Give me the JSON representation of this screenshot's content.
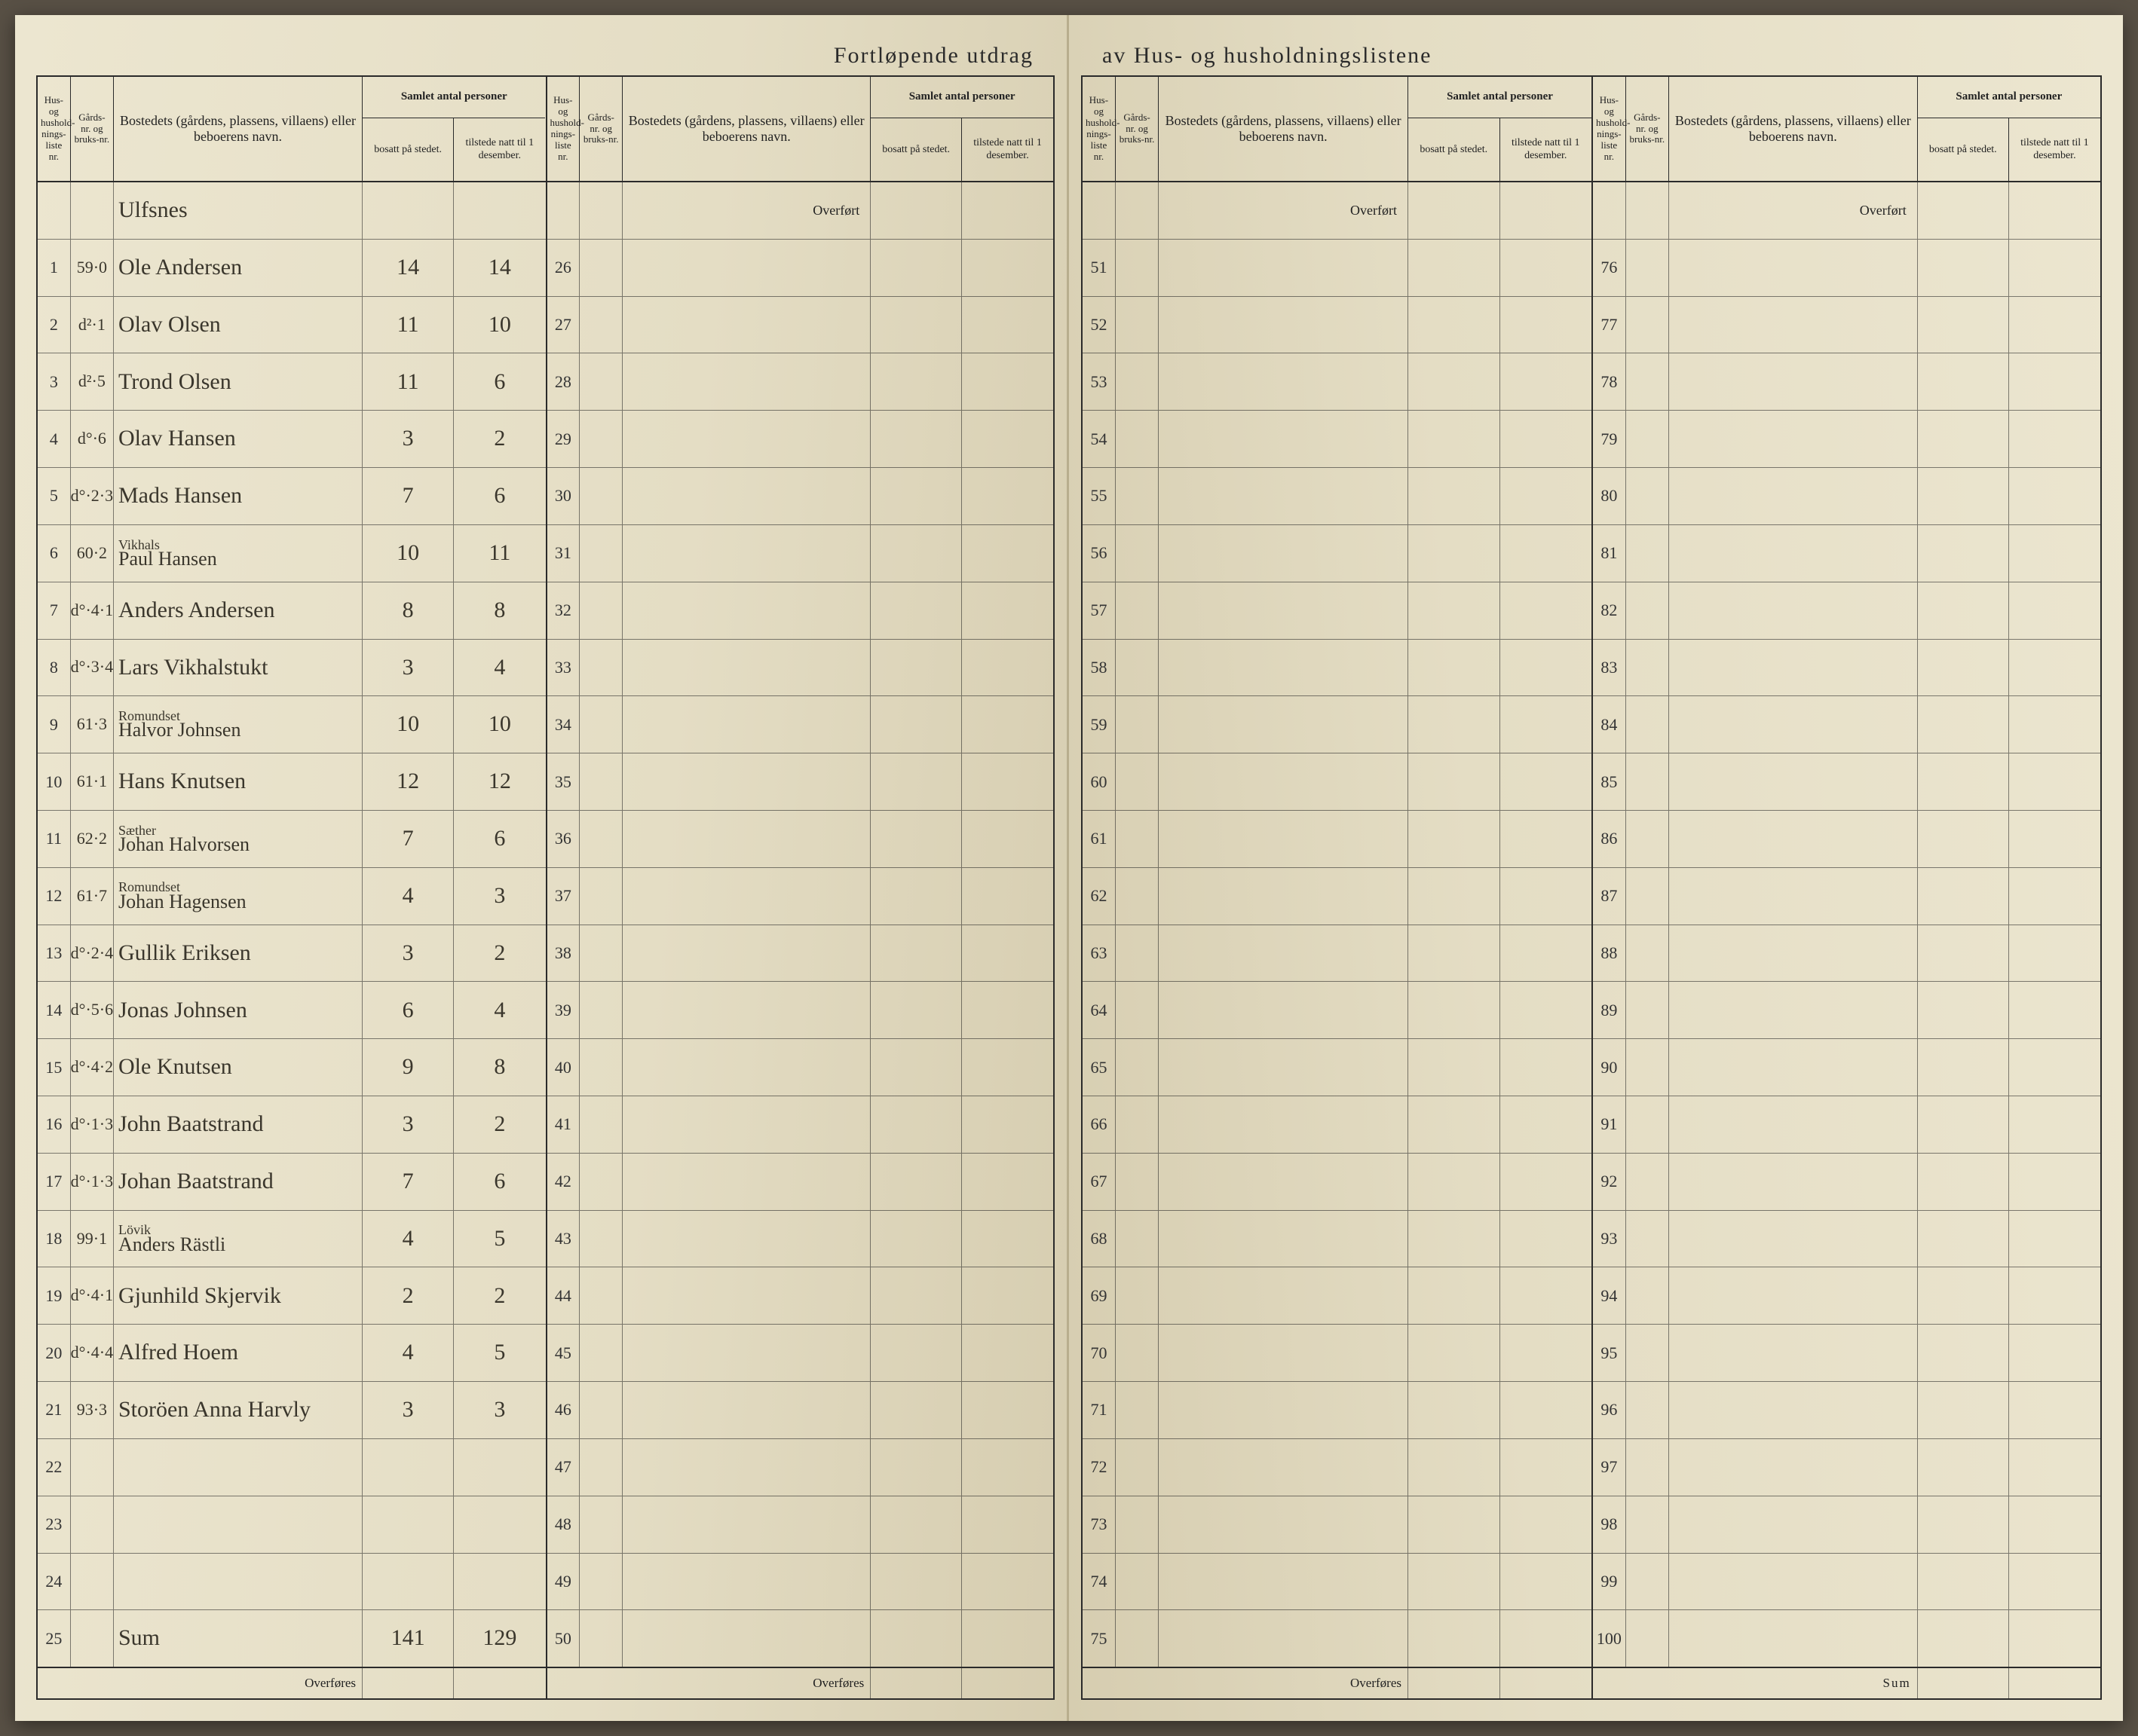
{
  "title_left": "Fortløpende utdrag",
  "title_right": "av Hus- og husholdningslistene",
  "header": {
    "hus": "Hus- og hushold-nings-liste nr.",
    "gard": "Gårds-nr. og bruks-nr.",
    "bosted": "Bostedets (gårdens, plassens, villaens) eller beboerens navn.",
    "persons_top": "Samlet antal personer",
    "bosatt": "bosatt på stedet.",
    "tilstede": "tilstede natt til 1 desember."
  },
  "overfort": "Overført",
  "overfores": "Overføres",
  "sum_label": "Sum",
  "sum_row_label": "Sum",
  "sum_bosatt": "141",
  "sum_tilstede": "129",
  "heading_place": "Ulfsnes",
  "rows": [
    {
      "n": 1,
      "gard": "59·0",
      "bosted": "Ole Andersen",
      "b": "14",
      "t": "14"
    },
    {
      "n": 2,
      "gard": "d²·1",
      "bosted": "Olav Olsen",
      "b": "11",
      "t": "10"
    },
    {
      "n": 3,
      "gard": "d²·5",
      "bosted": "Trond Olsen",
      "b": "11",
      "t": "6"
    },
    {
      "n": 4,
      "gard": "d°·6",
      "bosted": "Olav Hansen",
      "b": "3",
      "t": "2"
    },
    {
      "n": 5,
      "gard": "d°·2·3",
      "bosted": "Mads Hansen",
      "b": "7",
      "t": "6"
    },
    {
      "n": 6,
      "gard": "60·2",
      "sup": "Vikhals",
      "bosted": "Paul Hansen",
      "b": "10",
      "t": "11"
    },
    {
      "n": 7,
      "gard": "d°·4·1",
      "bosted": "Anders Andersen",
      "b": "8",
      "t": "8"
    },
    {
      "n": 8,
      "gard": "d°·3·4",
      "bosted": "Lars Vikhalstukt",
      "b": "3",
      "t": "4"
    },
    {
      "n": 9,
      "gard": "61·3",
      "sup": "Romundset",
      "bosted": "Halvor Johnsen",
      "b": "10",
      "t": "10"
    },
    {
      "n": 10,
      "gard": "61·1",
      "bosted": "Hans Knutsen",
      "b": "12",
      "t": "12"
    },
    {
      "n": 11,
      "gard": "62·2",
      "sup": "Sæther",
      "bosted": "Johan Halvorsen",
      "b": "7",
      "t": "6"
    },
    {
      "n": 12,
      "gard": "61·7",
      "sup": "Romundset",
      "bosted": "Johan Hagensen",
      "b": "4",
      "t": "3"
    },
    {
      "n": 13,
      "gard": "d°·2·4",
      "bosted": "Gullik Eriksen",
      "b": "3",
      "t": "2"
    },
    {
      "n": 14,
      "gard": "d°·5·6",
      "bosted": "Jonas Johnsen",
      "b": "6",
      "t": "4"
    },
    {
      "n": 15,
      "gard": "d°·4·2",
      "bosted": "Ole Knutsen",
      "b": "9",
      "t": "8"
    },
    {
      "n": 16,
      "gard": "d°·1·3",
      "bosted": "John Baatstrand",
      "b": "3",
      "t": "2"
    },
    {
      "n": 17,
      "gard": "d°·1·3",
      "bosted": "Johan Baatstrand",
      "b": "7",
      "t": "6"
    },
    {
      "n": 18,
      "gard": "99·1",
      "sup": "Lövik",
      "bosted": "Anders Rästli",
      "b": "4",
      "t": "5"
    },
    {
      "n": 19,
      "gard": "d°·4·1",
      "bosted": "Gjunhild Skjervik",
      "b": "2",
      "t": "2"
    },
    {
      "n": 20,
      "gard": "d°·4·4",
      "bosted": "Alfred Hoem",
      "b": "4",
      "t": "5"
    },
    {
      "n": 21,
      "gard": "93·3",
      "bosted": "Storöen Anna Harvly",
      "b": "3",
      "t": "3"
    },
    {
      "n": 22,
      "gard": "",
      "bosted": "",
      "b": "",
      "t": ""
    },
    {
      "n": 23,
      "gard": "",
      "bosted": "",
      "b": "",
      "t": ""
    },
    {
      "n": 24,
      "gard": "",
      "bosted": "",
      "b": "",
      "t": ""
    }
  ],
  "panel_ranges": [
    {
      "start": 26,
      "end": 50
    },
    {
      "start": 51,
      "end": 75
    },
    {
      "start": 76,
      "end": 100
    }
  ]
}
